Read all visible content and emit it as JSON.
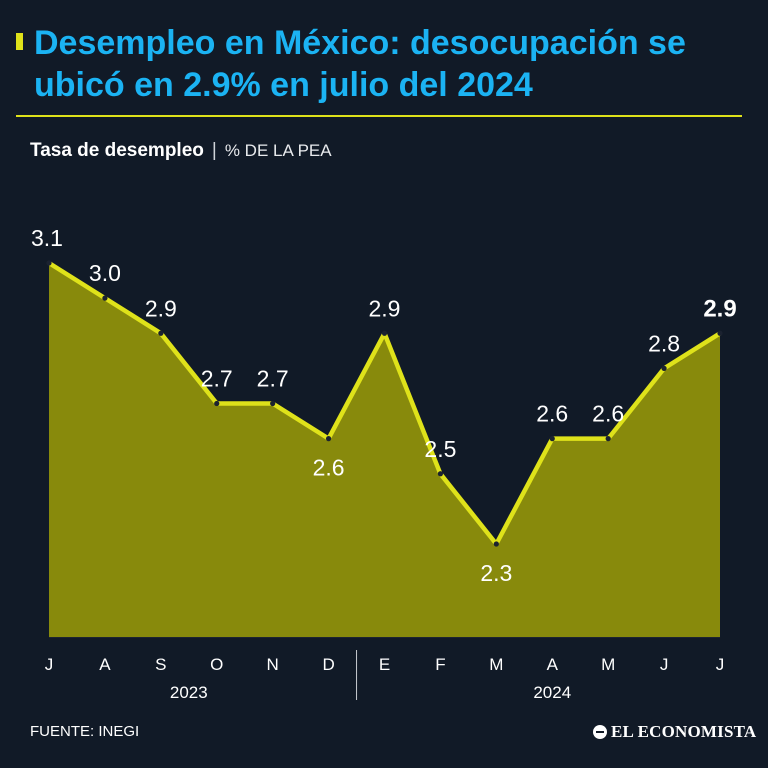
{
  "header": {
    "title": "Desempleo en México: desocupación se ubicó en 2.9% en julio del 2024",
    "subtitle_main": "Tasa de desempleo",
    "subtitle_separator": "|",
    "subtitle_unit": "% DE LA PEA"
  },
  "footer": {
    "source": "FUENTE: INEGI",
    "brand": "EL ECONOMISTA"
  },
  "colors": {
    "background": "#111a27",
    "title": "#1bb3f3",
    "accent": "#dfe21a",
    "area_fill": "#888a0c",
    "text": "#ffffff"
  },
  "chart_data": {
    "type": "area",
    "title": "Tasa de desempleo",
    "ylabel": "% DE LA PEA",
    "ylim": [
      0,
      3.1
    ],
    "grid": false,
    "categories": [
      "J",
      "A",
      "S",
      "O",
      "N",
      "D",
      "E",
      "F",
      "M",
      "A",
      "M",
      "J",
      "J"
    ],
    "values": [
      3.1,
      3.0,
      2.9,
      2.7,
      2.7,
      2.6,
      2.9,
      2.5,
      2.3,
      2.6,
      2.6,
      2.8,
      2.9
    ],
    "labels": [
      "3.1",
      "3.0",
      "2.9",
      "2.7",
      "2.7",
      "2.6",
      "2.9",
      "2.5",
      "2.3",
      "2.6",
      "2.6",
      "2.8",
      "2.9"
    ],
    "label_side": [
      "above",
      "above",
      "above",
      "above",
      "above",
      "below",
      "above",
      "above",
      "below",
      "above",
      "above",
      "above",
      "above"
    ],
    "highlight_last": true,
    "year_groups": [
      {
        "label": "2023",
        "start": 0,
        "end": 5
      },
      {
        "label": "2024",
        "start": 6,
        "end": 12
      }
    ]
  }
}
